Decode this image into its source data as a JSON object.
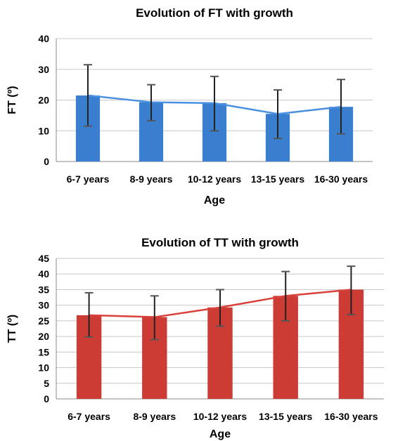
{
  "chart_data": [
    {
      "type": "bar",
      "title": "Evolution of FT with growth",
      "xlabel": "Age",
      "ylabel": "FT (º)",
      "categories": [
        "6-7 years",
        "8-9 years",
        "10-12 years",
        "13-15 years",
        "16-30 years"
      ],
      "values": [
        21.5,
        19.3,
        19.0,
        15.5,
        17.8
      ],
      "error_low": [
        11.5,
        13.3,
        10.0,
        7.5,
        9.0
      ],
      "error_high": [
        31.5,
        25.0,
        27.7,
        23.3,
        26.7
      ],
      "line_values": [
        21.5,
        19.3,
        19.0,
        15.5,
        17.8
      ],
      "ylim": [
        0,
        40
      ],
      "yticks": [
        0,
        10,
        20,
        30,
        40
      ],
      "bar_color": "#3a7fcf",
      "line_color": "#4a90e2",
      "grid": true
    },
    {
      "type": "bar",
      "title": "Evolution of TT with growth",
      "xlabel": "Age",
      "ylabel": "TT (º)",
      "categories": [
        "6-7 years",
        "8-9 years",
        "10-12 years",
        "13-15 years",
        "16-30 years"
      ],
      "values": [
        26.8,
        26.2,
        29.3,
        33.0,
        35.0
      ],
      "error_low": [
        19.8,
        19.0,
        23.3,
        25.0,
        27.0
      ],
      "error_high": [
        34.0,
        33.0,
        35.0,
        40.8,
        42.5
      ],
      "line_values": [
        26.8,
        26.2,
        29.3,
        33.0,
        35.0
      ],
      "ylim": [
        0,
        45
      ],
      "yticks": [
        0,
        5,
        10,
        15,
        20,
        25,
        30,
        35,
        40,
        45
      ],
      "bar_color": "#cc3b34",
      "line_color": "#d9413a",
      "grid": true
    }
  ]
}
